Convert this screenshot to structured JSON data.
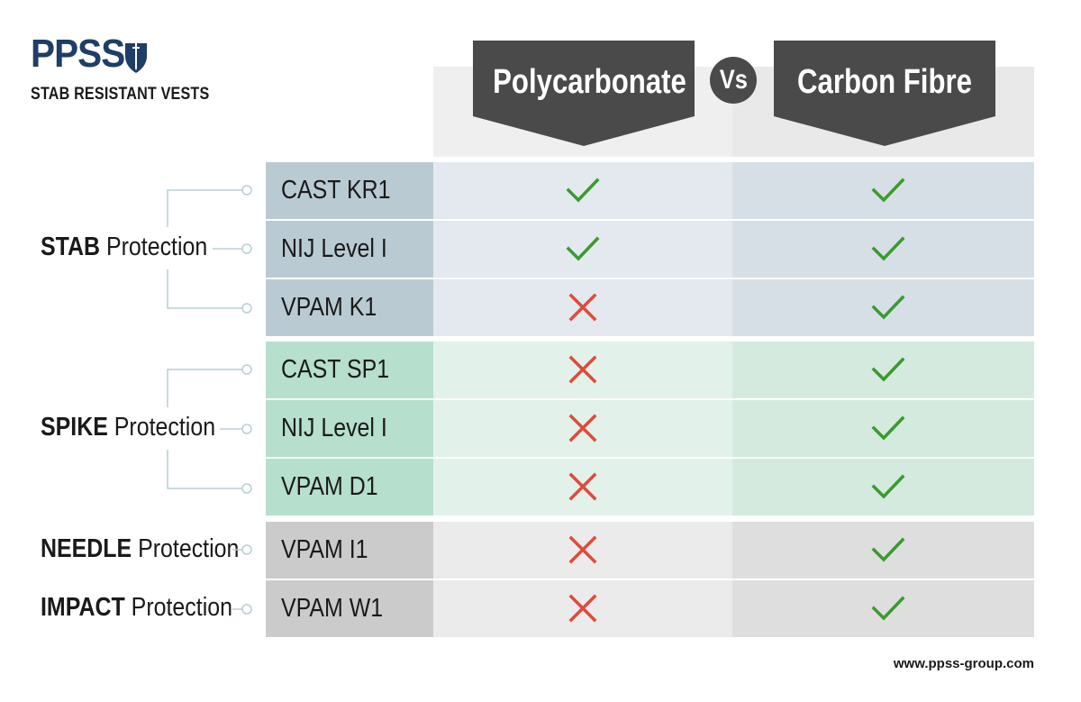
{
  "logo": {
    "name": "PPSS",
    "tagline": "STAB RESISTANT VESTS"
  },
  "header": {
    "left_material": "Polycarbonate",
    "vs": "Vs",
    "right_material": "Carbon Fibre"
  },
  "groups": [
    {
      "bold": "STAB",
      "rest": " Protection",
      "color": "stab"
    },
    {
      "bold": "SPIKE",
      "rest": " Protection",
      "color": "spike"
    },
    {
      "bold": "NEEDLE",
      "rest": " Protection",
      "color": "needle"
    },
    {
      "bold": "IMPACT",
      "rest": " Protection",
      "color": "impact"
    }
  ],
  "rows": [
    {
      "standard": "CAST KR1",
      "polycarbonate": "check",
      "carbon_fibre": "check"
    },
    {
      "standard": "NIJ Level I",
      "polycarbonate": "check",
      "carbon_fibre": "check"
    },
    {
      "standard": "VPAM K1",
      "polycarbonate": "cross",
      "carbon_fibre": "check"
    },
    {
      "standard": "CAST SP1",
      "polycarbonate": "cross",
      "carbon_fibre": "check"
    },
    {
      "standard": "NIJ Level I",
      "polycarbonate": "cross",
      "carbon_fibre": "check"
    },
    {
      "standard": "VPAM D1",
      "polycarbonate": "cross",
      "carbon_fibre": "check"
    },
    {
      "standard": "VPAM I1",
      "polycarbonate": "cross",
      "carbon_fibre": "check"
    },
    {
      "standard": "VPAM W1",
      "polycarbonate": "cross",
      "carbon_fibre": "check"
    }
  ],
  "colors": {
    "logo_navy": "#1f3d66",
    "banner": "#4a4a4a",
    "check": "#3a9a2e",
    "cross": "#e04a3a",
    "stab_label_bg": "#b9cad3",
    "stab_cell_left": "#e3e9ee",
    "stab_cell_right": "#d7dfe6",
    "spike_label_bg": "#b6dfcd",
    "spike_cell_left": "#e2f2ea",
    "spike_cell_right": "#d4eade",
    "grey_label_bg": "#cbcbcb",
    "grey_cell_left": "#ebebeb",
    "grey_cell_right": "#dedede"
  },
  "footer": {
    "url": "www.ppss-group.com"
  }
}
